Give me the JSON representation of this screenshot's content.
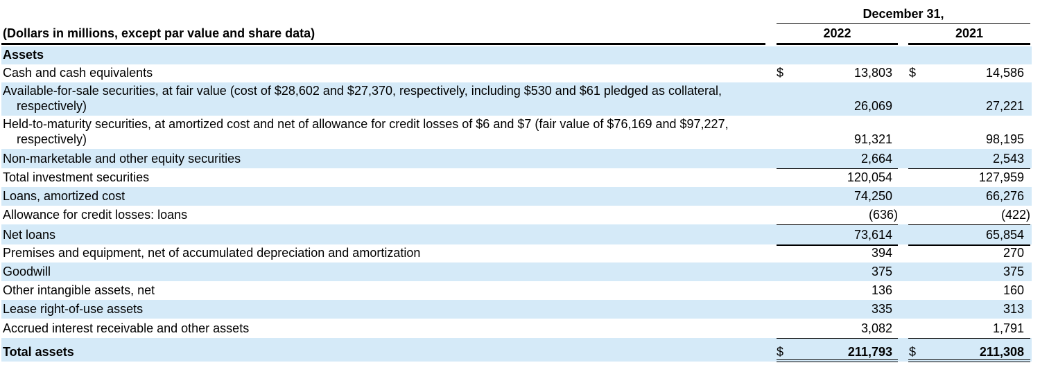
{
  "header": {
    "period_title": "December 31,",
    "units_label": "(Dollars in millions, except par value and share data)",
    "years": [
      "2022",
      "2021"
    ]
  },
  "rows": [
    {
      "label": "Assets",
      "bold": true,
      "shade": true,
      "h": 26
    },
    {
      "label": "Cash and cash equivalents",
      "v1": "13,803",
      "v2": "14,586",
      "cur": true,
      "h": 26
    },
    {
      "label": "Available-for-sale securities, at fair value (cost of $28,602 and $27,370, respectively, including $530 and $61 pledged as collateral,",
      "label2": "respectively)",
      "v1": "26,069",
      "v2": "27,221",
      "shade": true,
      "h": 48
    },
    {
      "label": "Held-to-maturity securities, at amortized cost and net of allowance for credit losses of $6 and $7 (fair value of $76,169 and $97,227,",
      "label2": "respectively)",
      "v1": "91,321",
      "v2": "98,195",
      "h": 48
    },
    {
      "label": "Non-marketable and other equity securities",
      "v1": "2,664",
      "v2": "2,543",
      "shade": true,
      "h": 28
    },
    {
      "label": "Total investment securities",
      "v1": "120,054",
      "v2": "127,959",
      "rule_top": "thin",
      "h": 27
    },
    {
      "label": "Loans, amortized cost",
      "v1": "74,250",
      "v2": "66,276",
      "shade": true,
      "h": 27
    },
    {
      "label": "Allowance for credit losses: loans",
      "v1": "(636)",
      "v2": "(422)",
      "neg": true,
      "h": 27
    },
    {
      "label": "Net loans",
      "v1": "73,614",
      "v2": "65,854",
      "shade": true,
      "rule_top": "thin",
      "h": 29
    },
    {
      "label": "Premises and equipment, net of accumulated depreciation and amortization",
      "v1": "394",
      "v2": "270",
      "rule_top": "thick",
      "h": 26
    },
    {
      "label": "Goodwill",
      "v1": "375",
      "v2": "375",
      "shade": true,
      "h": 27
    },
    {
      "label": "Other intangible assets, net",
      "v1": "136",
      "v2": "160",
      "h": 27
    },
    {
      "label": "Lease right-of-use assets",
      "v1": "335",
      "v2": "313",
      "shade": true,
      "h": 27
    },
    {
      "label": "Accrued interest receivable and other assets",
      "v1": "3,082",
      "v2": "1,791",
      "h": 28
    },
    {
      "label": "Total assets",
      "v1": "211,793",
      "v2": "211,308",
      "bold": true,
      "shade": true,
      "cur": true,
      "rule_top": "thin",
      "rule_bottom": "double",
      "h": 34
    }
  ],
  "currency_symbol": "$"
}
